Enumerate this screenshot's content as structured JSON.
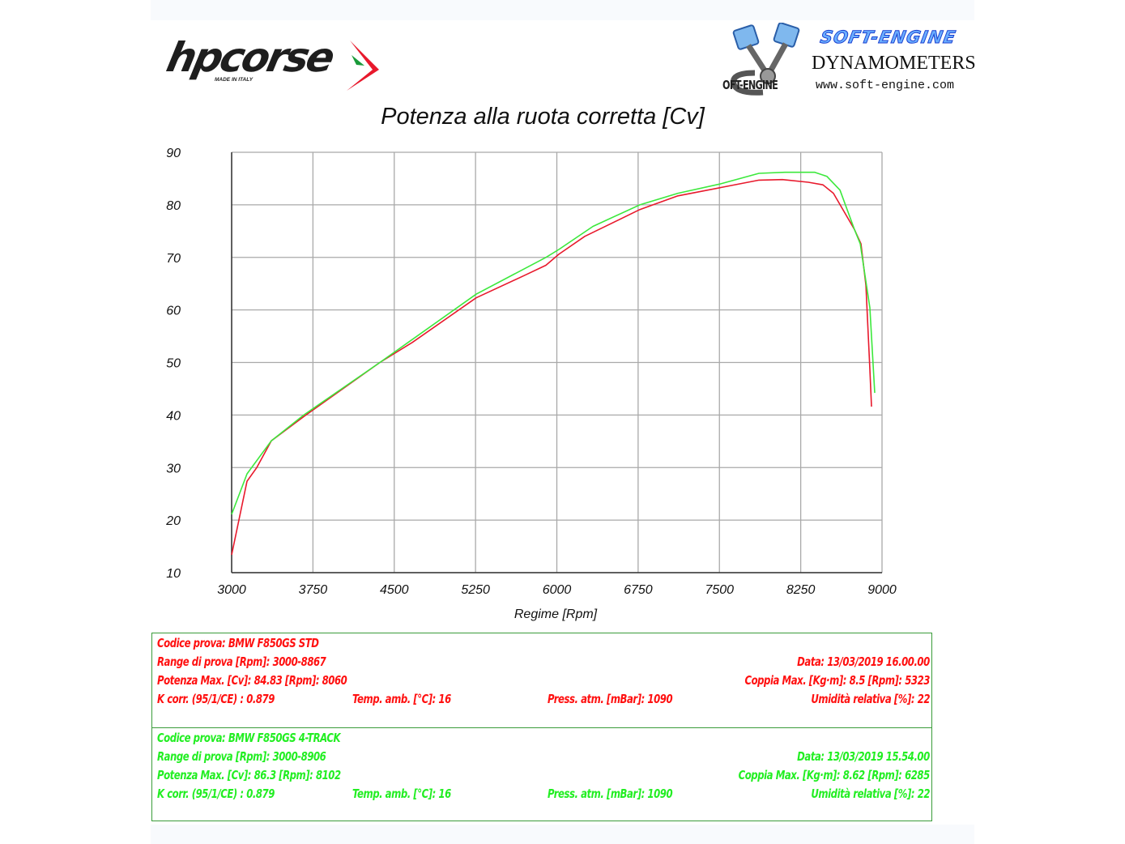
{
  "logos": {
    "left": {
      "name": "hpcorse",
      "tagline": "MADE IN ITALY"
    },
    "right": {
      "brand": "SOFT-ENGINE",
      "subtitle": "DYNAMOMETERS",
      "url": "www.soft-engine.com",
      "mark": "OFT-ENGINE"
    }
  },
  "colors": {
    "series_std": "#e8192c",
    "series_4track": "#3ce83c",
    "grid": "#a9a9a9",
    "axis": "#333333",
    "panel_border": "#3a9c3a"
  },
  "chart_data": {
    "type": "line",
    "title": "Potenza alla ruota corretta [Cv]",
    "xlabel": "Regime [Rpm]",
    "ylabel": "",
    "xlim": [
      3000,
      9000
    ],
    "ylim": [
      10,
      90
    ],
    "xticks": [
      3000,
      3750,
      4500,
      5250,
      6000,
      6750,
      7500,
      8250,
      9000
    ],
    "yticks": [
      10,
      20,
      30,
      40,
      50,
      60,
      70,
      80,
      90
    ],
    "grid": true,
    "legend": "none (info panel below chart)",
    "series": [
      {
        "name": "BMW F850GS STD",
        "color": "#e8192c",
        "x": [
          3000,
          3142,
          3232,
          3366,
          3665,
          4367,
          4666,
          5256,
          5705,
          5899,
          6019,
          6258,
          6766,
          7117,
          7513,
          7864,
          8081,
          8320,
          8455,
          8552,
          8746,
          8806,
          8851,
          8888,
          8903
        ],
        "y": [
          13.4,
          27.4,
          30.0,
          35.1,
          39.7,
          50.0,
          53.8,
          62.3,
          66.6,
          68.5,
          70.6,
          74.0,
          79.1,
          81.7,
          83.3,
          84.7,
          84.8,
          84.3,
          83.8,
          82.2,
          75.3,
          72.6,
          64.7,
          48.7,
          41.6
        ]
      },
      {
        "name": "BMW F850GS 4-TRACK",
        "color": "#3ce83c",
        "x": [
          3000,
          3142,
          3366,
          3665,
          4367,
          5256,
          5899,
          6019,
          6333,
          6766,
          7117,
          7513,
          7864,
          8103,
          8380,
          8492,
          8612,
          8746,
          8799,
          8888,
          8933
        ],
        "y": [
          21.1,
          28.8,
          35.1,
          40.0,
          50.0,
          63.0,
          70.0,
          71.5,
          75.9,
          80.0,
          82.2,
          84.0,
          86.0,
          86.2,
          86.2,
          85.4,
          82.8,
          75.3,
          72.6,
          60.4,
          44.2
        ]
      }
    ]
  },
  "info_panel": {
    "tests": [
      {
        "color_key": "red",
        "codice": "Codice prova: BMW F850GS STD",
        "range": "Range di prova [Rpm]: 3000-8867",
        "data": "Data: 13/03/2019   16.00.00",
        "potenza": "Potenza Max. [Cv]: 84.83   [Rpm]: 8060",
        "coppia": "Coppia Max. [Kg·m]: 8.5   [Rpm]: 5323",
        "kcorr": "K corr. (95/1/CE) : 0.879",
        "temp": "Temp. amb. [°C]: 16",
        "press": "Press. atm. [mBar]: 1090",
        "umidita": "Umidità relativa [%]: 22"
      },
      {
        "color_key": "green",
        "codice": "Codice prova: BMW F850GS 4-TRACK",
        "range": "Range di prova [Rpm]: 3000-8906",
        "data": "Data: 13/03/2019   15.54.00",
        "potenza": "Potenza Max. [Cv]: 86.3   [Rpm]: 8102",
        "coppia": "Coppia Max. [Kg·m]: 8.62   [Rpm]: 6285",
        "kcorr": "K corr. (95/1/CE) : 0.879",
        "temp": "Temp. amb. [°C]: 16",
        "press": "Press. atm. [mBar]: 1090",
        "umidita": "Umidità relativa [%]: 22"
      }
    ]
  }
}
